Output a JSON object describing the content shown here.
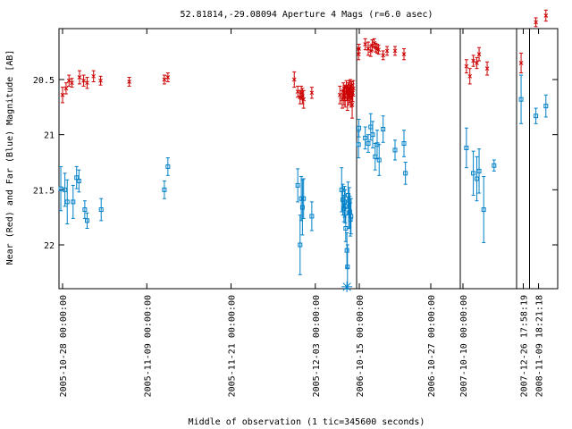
{
  "chart_data": {
    "type": "scatter",
    "title": "52.81814,-29.08094   Aperture 4 Mags (r=6.0 asec)",
    "xlabel": "Middle of observation (1 tic=345600 seconds)",
    "ylabel": "Near (Red) and Far (Blue) Magnitude [AB]",
    "ylim": [
      22.38,
      19.93
    ],
    "y_reversed": true,
    "y_ticks": [
      "20.5",
      "21",
      "21.5",
      "22"
    ],
    "y_tick_values": [
      20.5,
      21.0,
      21.5,
      22.0
    ],
    "x_ticks": [
      "2005-10-28 00:00:00",
      "2005-11-09 00:00:00",
      "2005-11-21 00:00:00",
      "2005-12-03 00:00:00",
      "2006-10-15 00:00:00",
      "2006-10-27 00:00:00",
      "2007-10-10 00:00:00",
      "2007-12-26 17:58:19",
      "2008-11-09 18:21:18"
    ],
    "segments": [
      {
        "x_range": [
          "2005-10-28",
          "2005-12-08"
        ]
      },
      {
        "x_range": [
          "2006-10-15",
          "2006-10-31"
        ]
      },
      {
        "x_range": [
          "2007-10-10",
          "2007-10-17"
        ]
      },
      {
        "x_range": [
          "2007-12-26",
          "2007-12-27"
        ]
      },
      {
        "x_range": [
          "2008-11-09",
          "2008-11-11"
        ]
      }
    ],
    "colors": {
      "near": "#cc0000",
      "far": "#0080c8",
      "frame": "#000000",
      "special": "#0080c8"
    },
    "series": [
      {
        "name": "Near (Red)",
        "marker": "x",
        "points": [
          {
            "x": "2005-10-28 00:00",
            "y": 20.64,
            "err": 0.07
          },
          {
            "x": "2005-10-28 12:00",
            "y": 20.58,
            "err": 0.05
          },
          {
            "x": "2005-10-28 22:00",
            "y": 20.51,
            "err": 0.05
          },
          {
            "x": "2005-10-29 08:00",
            "y": 20.53,
            "err": 0.04
          },
          {
            "x": "2005-10-30 10:00",
            "y": 20.48,
            "err": 0.06
          },
          {
            "x": "2005-10-31 00:00",
            "y": 20.51,
            "err": 0.05
          },
          {
            "x": "2005-10-31 12:00",
            "y": 20.53,
            "err": 0.05
          },
          {
            "x": "2005-11-01 10:00",
            "y": 20.47,
            "err": 0.05
          },
          {
            "x": "2005-11-02 10:00",
            "y": 20.51,
            "err": 0.04
          },
          {
            "x": "2005-11-06 12:00",
            "y": 20.52,
            "err": 0.04
          },
          {
            "x": "2005-11-11 12:00",
            "y": 20.5,
            "err": 0.04
          },
          {
            "x": "2005-11-12 00:00",
            "y": 20.48,
            "err": 0.04
          },
          {
            "x": "2005-11-30 00:00",
            "y": 20.5,
            "err": 0.07
          },
          {
            "x": "2005-11-30 12:00",
            "y": 20.61,
            "err": 0.05
          },
          {
            "x": "2005-11-30 20:00",
            "y": 20.66,
            "err": 0.06
          },
          {
            "x": "2005-12-01 00:00",
            "y": 20.62,
            "err": 0.06
          },
          {
            "x": "2005-12-01 04:00",
            "y": 20.65,
            "err": 0.07
          },
          {
            "x": "2005-12-01 08:00",
            "y": 20.68,
            "err": 0.08
          },
          {
            "x": "2005-12-02 12:00",
            "y": 20.62,
            "err": 0.05
          },
          {
            "x": "2005-12-06 12:00",
            "y": 20.64,
            "err": 0.08
          },
          {
            "x": "2005-12-06 20:00",
            "y": 20.68,
            "err": 0.08
          },
          {
            "x": "2005-12-07 00:00",
            "y": 20.6,
            "err": 0.07
          },
          {
            "x": "2005-12-07 02:00",
            "y": 20.65,
            "err": 0.08
          },
          {
            "x": "2005-12-07 04:00",
            "y": 20.62,
            "err": 0.07
          },
          {
            "x": "2005-12-07 06:00",
            "y": 20.66,
            "err": 0.09
          },
          {
            "x": "2005-12-07 10:00",
            "y": 20.57,
            "err": 0.06
          },
          {
            "x": "2005-12-07 12:00",
            "y": 20.62,
            "err": 0.07
          },
          {
            "x": "2005-12-07 14:00",
            "y": 20.68,
            "err": 0.1
          },
          {
            "x": "2005-12-07 16:00",
            "y": 20.6,
            "err": 0.07
          },
          {
            "x": "2005-12-07 18:00",
            "y": 20.65,
            "err": 0.08
          },
          {
            "x": "2005-12-07 20:00",
            "y": 20.58,
            "err": 0.07
          },
          {
            "x": "2005-12-07 22:00",
            "y": 20.63,
            "err": 0.08
          },
          {
            "x": "2005-12-08 00:00",
            "y": 20.56,
            "err": 0.06
          },
          {
            "x": "2005-12-08 02:00",
            "y": 20.66,
            "err": 0.09
          },
          {
            "x": "2005-12-08 04:00",
            "y": 20.6,
            "err": 0.08
          },
          {
            "x": "2005-12-08 06:00",
            "y": 20.73,
            "err": 0.12
          },
          {
            "x": "2005-12-08 08:00",
            "y": 20.62,
            "err": 0.08
          },
          {
            "x": "2005-12-08 10:00",
            "y": 20.58,
            "err": 0.07
          },
          {
            "x": "2006-10-14 21:00",
            "y": 20.27,
            "err": 0.05
          },
          {
            "x": "2006-10-14 22:30",
            "y": 20.22,
            "err": 0.04
          },
          {
            "x": "2006-10-16 00:00",
            "y": 20.18,
            "err": 0.05
          },
          {
            "x": "2006-10-16 12:00",
            "y": 20.22,
            "err": 0.06
          },
          {
            "x": "2006-10-16 22:00",
            "y": 20.24,
            "err": 0.05
          },
          {
            "x": "2006-10-17 04:00",
            "y": 20.19,
            "err": 0.05
          },
          {
            "x": "2006-10-17 12:00",
            "y": 20.17,
            "err": 0.04
          },
          {
            "x": "2006-10-17 18:00",
            "y": 20.21,
            "err": 0.04
          },
          {
            "x": "2006-10-18 00:00",
            "y": 20.22,
            "err": 0.04
          },
          {
            "x": "2006-10-18 06:00",
            "y": 20.23,
            "err": 0.04
          },
          {
            "x": "2006-10-19 00:00",
            "y": 20.28,
            "err": 0.04
          },
          {
            "x": "2006-10-19 16:00",
            "y": 20.24,
            "err": 0.04
          },
          {
            "x": "2006-10-21 00:00",
            "y": 20.24,
            "err": 0.04
          },
          {
            "x": "2006-10-22 12:00",
            "y": 20.27,
            "err": 0.05
          },
          {
            "x": "2007-10-10 12:00",
            "y": 20.38,
            "err": 0.06
          },
          {
            "x": "2007-10-11 00:00",
            "y": 20.47,
            "err": 0.07
          },
          {
            "x": "2007-10-11 12:00",
            "y": 20.33,
            "err": 0.05
          },
          {
            "x": "2007-10-12 00:00",
            "y": 20.35,
            "err": 0.05
          },
          {
            "x": "2007-10-12 08:00",
            "y": 20.27,
            "err": 0.06
          },
          {
            "x": "2007-10-13 12:00",
            "y": 20.4,
            "err": 0.06
          },
          {
            "x": "2007-12-26 10:00",
            "y": 20.35,
            "err": 0.09
          },
          {
            "x": "2008-11-09 12:00",
            "y": 19.98,
            "err": 0.04
          },
          {
            "x": "2008-11-10 12:00",
            "y": 19.92,
            "err": 0.05
          }
        ]
      },
      {
        "name": "Far (Blue)",
        "marker": "square",
        "points": [
          {
            "x": "2005-10-27 18:00",
            "y": 21.49,
            "err": 0.2
          },
          {
            "x": "2005-10-28 08:00",
            "y": 21.5,
            "err": 0.15
          },
          {
            "x": "2005-10-28 16:00",
            "y": 21.61,
            "err": 0.2
          },
          {
            "x": "2005-10-29 12:00",
            "y": 21.61,
            "err": 0.15
          },
          {
            "x": "2005-10-30 00:00",
            "y": 21.39,
            "err": 0.1
          },
          {
            "x": "2005-10-30 08:00",
            "y": 21.42,
            "err": 0.1
          },
          {
            "x": "2005-10-31 04:00",
            "y": 21.68,
            "err": 0.08
          },
          {
            "x": "2005-10-31 12:00",
            "y": 21.78,
            "err": 0.07
          },
          {
            "x": "2005-11-02 12:00",
            "y": 21.68,
            "err": 0.1
          },
          {
            "x": "2005-11-11 12:00",
            "y": 21.5,
            "err": 0.08
          },
          {
            "x": "2005-11-12 00:00",
            "y": 21.29,
            "err": 0.08
          },
          {
            "x": "2005-11-30 12:00",
            "y": 21.46,
            "err": 0.15
          },
          {
            "x": "2005-11-30 20:00",
            "y": 22.0,
            "err": 0.27
          },
          {
            "x": "2005-12-01 00:00",
            "y": 21.58,
            "err": 0.2
          },
          {
            "x": "2005-12-01 04:00",
            "y": 21.66,
            "err": 0.25
          },
          {
            "x": "2005-12-01 08:00",
            "y": 21.58,
            "err": 0.18
          },
          {
            "x": "2005-12-02 12:00",
            "y": 21.74,
            "err": 0.13
          },
          {
            "x": "2005-12-06 18:00",
            "y": 21.5,
            "err": 0.2
          },
          {
            "x": "2005-12-06 22:00",
            "y": 21.59,
            "err": 0.14
          },
          {
            "x": "2005-12-07 02:00",
            "y": 21.67,
            "err": 0.12
          },
          {
            "x": "2005-12-07 04:00",
            "y": 21.61,
            "err": 0.14
          },
          {
            "x": "2005-12-07 06:00",
            "y": 21.65,
            "err": 0.15
          },
          {
            "x": "2005-12-07 08:00",
            "y": 21.85,
            "err": 0.12
          },
          {
            "x": "2005-12-07 12:00",
            "y": 22.05,
            "err": 0.16
          },
          {
            "x": "2005-12-07 14:00",
            "y": 22.2,
            "err": 0.2
          },
          {
            "x": "2005-12-07 16:00",
            "y": 21.55,
            "err": 0.12
          },
          {
            "x": "2005-12-07 18:00",
            "y": 21.71,
            "err": 0.14
          },
          {
            "x": "2005-12-07 20:00",
            "y": 21.6,
            "err": 0.12
          },
          {
            "x": "2005-12-07 22:00",
            "y": 21.7,
            "err": 0.14
          },
          {
            "x": "2005-12-08 00:00",
            "y": 21.77,
            "err": 0.15
          },
          {
            "x": "2005-12-08 02:00",
            "y": 21.74,
            "err": 0.16
          },
          {
            "x": "2006-10-14 21:00",
            "y": 21.09,
            "err": 0.12
          },
          {
            "x": "2006-10-14 22:30",
            "y": 20.94,
            "err": 0.08
          },
          {
            "x": "2006-10-16 00:00",
            "y": 21.03,
            "err": 0.1
          },
          {
            "x": "2006-10-16 12:00",
            "y": 21.08,
            "err": 0.08
          },
          {
            "x": "2006-10-16 22:00",
            "y": 20.93,
            "err": 0.12
          },
          {
            "x": "2006-10-17 06:00",
            "y": 21.0,
            "err": 0.12
          },
          {
            "x": "2006-10-17 16:00",
            "y": 21.2,
            "err": 0.12
          },
          {
            "x": "2006-10-18 00:00",
            "y": 21.09,
            "err": 0.13
          },
          {
            "x": "2006-10-18 08:00",
            "y": 21.23,
            "err": 0.14
          },
          {
            "x": "2006-10-19 00:00",
            "y": 20.95,
            "err": 0.12
          },
          {
            "x": "2006-10-21 00:00",
            "y": 21.14,
            "err": 0.09
          },
          {
            "x": "2006-10-22 12:00",
            "y": 21.08,
            "err": 0.12
          },
          {
            "x": "2006-10-22 18:00",
            "y": 21.35,
            "err": 0.1
          },
          {
            "x": "2007-10-10 12:00",
            "y": 21.12,
            "err": 0.18
          },
          {
            "x": "2007-10-11 12:00",
            "y": 21.35,
            "err": 0.2
          },
          {
            "x": "2007-10-12 00:00",
            "y": 21.4,
            "err": 0.2
          },
          {
            "x": "2007-10-12 08:00",
            "y": 21.33,
            "err": 0.2
          },
          {
            "x": "2007-10-13 00:00",
            "y": 21.68,
            "err": 0.3
          },
          {
            "x": "2007-10-14 12:00",
            "y": 21.28,
            "err": 0.05
          },
          {
            "x": "2007-12-26 10:00",
            "y": 20.68,
            "err": 0.22
          },
          {
            "x": "2008-11-09 12:00",
            "y": 20.83,
            "err": 0.07
          },
          {
            "x": "2008-11-10 12:00",
            "y": 20.74,
            "err": 0.1
          }
        ]
      }
    ],
    "special_marker": {
      "marker": "asterisk",
      "x": "2005-12-07 12:00",
      "y": 22.38
    }
  }
}
